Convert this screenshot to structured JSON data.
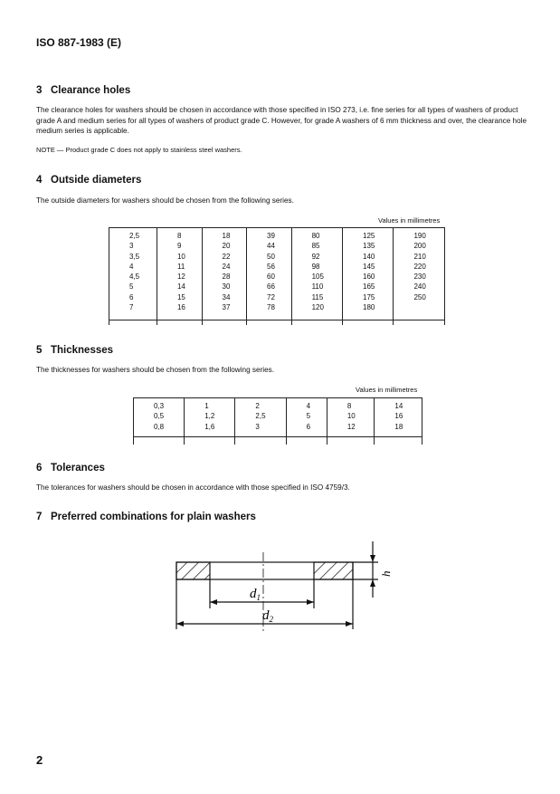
{
  "header": "ISO 887-1983 (E)",
  "sections": [
    {
      "number": "3",
      "title": "Clearance holes",
      "text": "The clearance holes for washers should be chosen in accordance with those specified in ISO 273, i.e. fine series for all types of washers of product grade A and medium series for all types of washers of product grade C. However, for grade A washers of 6 mm thickness and over, the clearance hole medium series is applicable.",
      "note": "NOTE — Product grade C does not apply to stainless steel washers."
    },
    {
      "number": "4",
      "title": "Outside diameters",
      "text": "The outside diameters for washers should be chosen from the following series.",
      "unit": "Values in millimetres",
      "columns": [
        [
          "2,5",
          "3",
          "3,5",
          "4",
          "4,5",
          "5",
          "6",
          "7"
        ],
        [
          "8",
          "9",
          "10",
          "11",
          "12",
          "14",
          "15",
          "16"
        ],
        [
          "18",
          "20",
          "22",
          "24",
          "28",
          "30",
          "34",
          "37"
        ],
        [
          "39",
          "44",
          "50",
          "56",
          "60",
          "66",
          "72",
          "78"
        ],
        [
          "80",
          "85",
          "92",
          "98",
          "105",
          "110",
          "115",
          "120"
        ],
        [
          "125",
          "135",
          "140",
          "145",
          "160",
          "165",
          "175",
          "180"
        ],
        [
          "190",
          "200",
          "210",
          "220",
          "230",
          "240",
          "250",
          ""
        ]
      ]
    },
    {
      "number": "5",
      "title": "Thicknesses",
      "text": "The thicknesses for washers should be chosen from the following series.",
      "unit": "Values in millimetres",
      "columns": [
        [
          "0,3",
          "0,5",
          "0,8"
        ],
        [
          "1",
          "1,2",
          "1,6"
        ],
        [
          "2",
          "2,5",
          "3"
        ],
        [
          "4",
          "5",
          "6"
        ],
        [
          "8",
          "10",
          "12"
        ],
        [
          "14",
          "16",
          "18"
        ]
      ]
    },
    {
      "number": "6",
      "title": "Tolerances",
      "text": "The tolerances for washers should be chosen in accordance with those specified in ISO 4759/3."
    },
    {
      "number": "7",
      "title": "Preferred combinations for plain washers"
    }
  ],
  "figure": {
    "label_d1": "d",
    "sub_d1": "1",
    "label_d2": "d",
    "sub_d2": "2",
    "label_h": "h"
  },
  "page_number": "2"
}
